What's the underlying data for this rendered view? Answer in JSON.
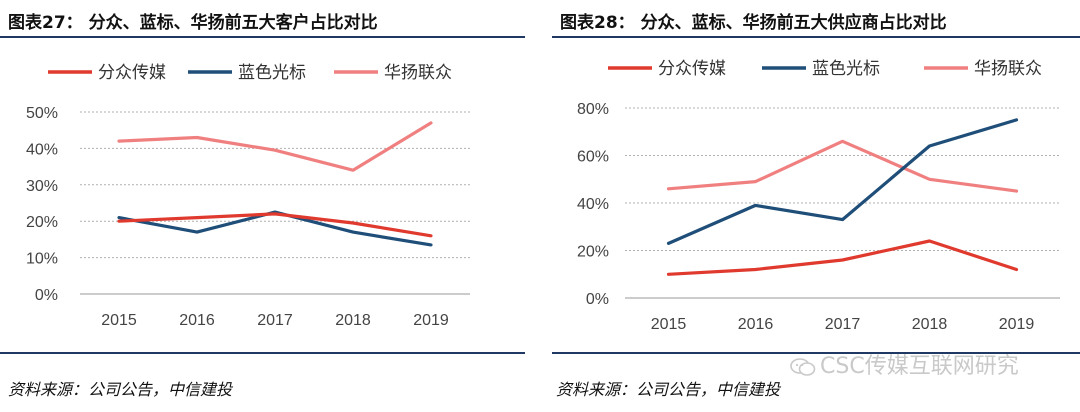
{
  "watermark": "CSC传媒互联网研究",
  "source_left": "资料来源：公司公告，中信建投",
  "source_right": "资料来源：公司公告，中信建投",
  "colors": {
    "fenzhong": "#e03a2f",
    "lanse": "#1f4e79",
    "huayang": "#f08080",
    "rule": "#1f3864"
  },
  "chart_data": [
    {
      "type": "line",
      "title": "图表27：  分众、蓝标、华扬前五大客户占比对比",
      "categories": [
        "2015",
        "2016",
        "2017",
        "2018",
        "2019"
      ],
      "ylim": [
        0,
        50
      ],
      "yticks": [
        "0%",
        "10%",
        "20%",
        "30%",
        "40%",
        "50%"
      ],
      "ytick_values": [
        0,
        10,
        20,
        30,
        40,
        50
      ],
      "series": [
        {
          "name": "分众传媒",
          "values": [
            20,
            21,
            22,
            19.5,
            16
          ]
        },
        {
          "name": "蓝色光标",
          "values": [
            21,
            17,
            22.5,
            17,
            13.5
          ]
        },
        {
          "name": "华扬联众",
          "values": [
            42,
            43,
            39.5,
            34,
            47
          ]
        }
      ]
    },
    {
      "type": "line",
      "title": "图表28：  分众、蓝标、华扬前五大供应商占比对比",
      "categories": [
        "2015",
        "2016",
        "2017",
        "2018",
        "2019"
      ],
      "ylim": [
        0,
        80
      ],
      "yticks": [
        "0%",
        "20%",
        "40%",
        "60%",
        "80%"
      ],
      "ytick_values": [
        0,
        20,
        40,
        60,
        80
      ],
      "series": [
        {
          "name": "分众传媒",
          "values": [
            10,
            12,
            16,
            24,
            12
          ]
        },
        {
          "name": "蓝色光标",
          "values": [
            23,
            39,
            33,
            64,
            75
          ]
        },
        {
          "name": "华扬联众",
          "values": [
            46,
            49,
            66,
            50,
            45
          ]
        }
      ]
    }
  ]
}
